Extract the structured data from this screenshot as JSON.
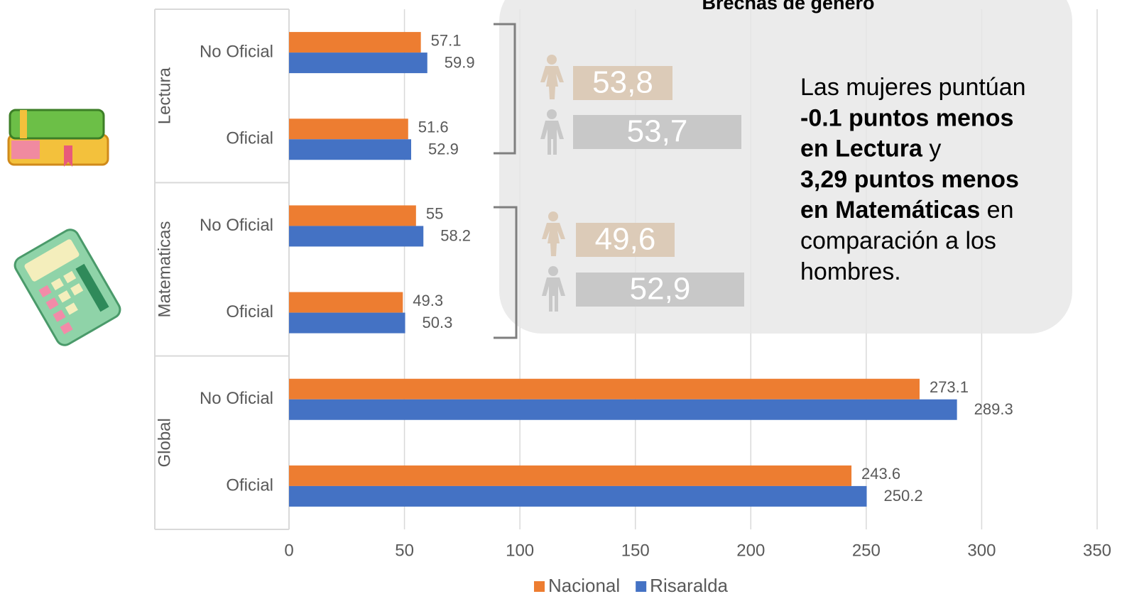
{
  "chart_data": {
    "type": "hbar",
    "title": "Brechas de género",
    "groups": [
      "Lectura",
      "Matematicas",
      "Global"
    ],
    "categories": [
      "No Oficial",
      "Oficial",
      "No Oficial",
      "Oficial",
      "No Oficial",
      "Oficial"
    ],
    "series": [
      {
        "name": "Nacional",
        "color": "#ed7d31",
        "values": [
          57.1,
          51.6,
          55,
          49.3,
          273.1,
          243.6
        ]
      },
      {
        "name": "Risaralda",
        "color": "#4472c4",
        "values": [
          59.9,
          52.9,
          58.2,
          50.3,
          289.3,
          250.2
        ]
      }
    ],
    "xlim": [
      0,
      350
    ],
    "xticks": [
      0,
      50,
      100,
      150,
      200,
      250,
      300,
      350
    ],
    "grid": true,
    "legend": "bottom",
    "gender_boxes": [
      "53,8",
      "53,7",
      "49,6",
      "52,9"
    ],
    "note": [
      [
        {
          "text": "Las mujeres puntúan",
          "bold": false
        }
      ],
      [
        {
          "text": "-0.1 puntos menos",
          "bold": true
        }
      ],
      [
        {
          "text": "en Lectura",
          "bold": true
        },
        {
          "text": " y",
          "bold": false
        }
      ],
      [
        {
          "text": "3,29 puntos menos",
          "bold": true
        }
      ],
      [
        {
          "text": "en Matemáticas",
          "bold": true
        },
        {
          "text": " en",
          "bold": false
        }
      ],
      [
        {
          "text": "comparación a los",
          "bold": false
        }
      ],
      [
        {
          "text": "hombres.",
          "bold": false
        }
      ]
    ]
  }
}
